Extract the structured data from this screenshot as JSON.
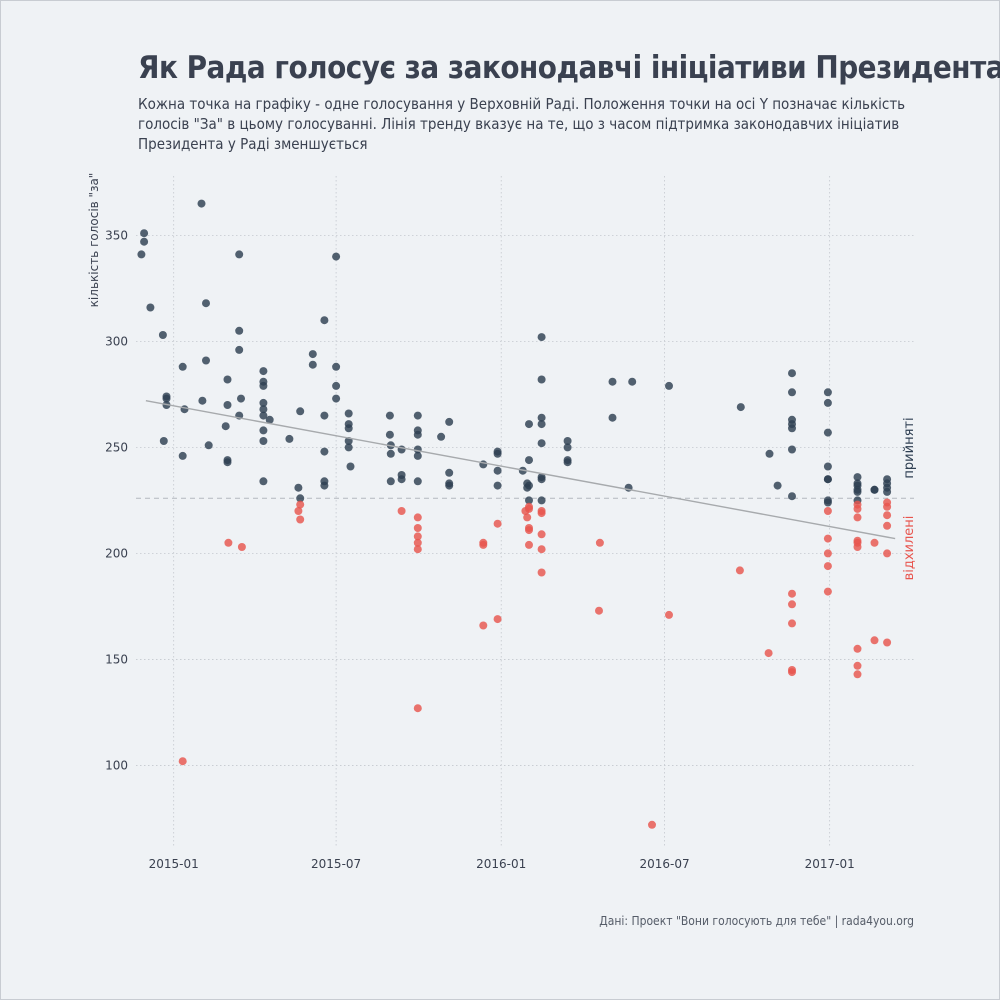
{
  "title": "Як Рада голосує за законодавчі ініціативи Президента",
  "subtitle": "Кожна точка на графіку - одне голосування у Верховній Раді. Положення точки на осі Y позначає кількість голосів \"За\" в цьому голосуванні. Лінія тренду вказує на те, що з часом підтримка законодавчих ініціатив Президента у Раді зменшується",
  "caption": "Дані: Проект \"Вони голосують для тебе\" | rada4you.org",
  "chart_data": {
    "type": "scatter",
    "ylabel": "кількість голосів \"за\"",
    "xlabel": "",
    "xlim": [
      "2014-11-20",
      "2017-04-05"
    ],
    "ylim": [
      62,
      378
    ],
    "x_ticks": [
      "2015-01-01",
      "2015-07-01",
      "2016-01-01",
      "2016-07-01",
      "2017-01-01"
    ],
    "x_tick_labels": [
      "2015-01",
      "2015-07",
      "2016-01",
      "2016-07",
      "2017-01"
    ],
    "y_ticks": [
      100,
      150,
      200,
      250,
      300,
      350
    ],
    "y_tick_labels": [
      "100",
      "150",
      "200",
      "250",
      "300",
      "350"
    ],
    "threshold": 226,
    "grid": true,
    "colors": {
      "passed": "#2e3f52",
      "rejected": "#e8554e",
      "trend": "#a7aaad",
      "threshold": "#b3b8bf"
    },
    "annotations": {
      "passed": "прийняті",
      "rejected": "відхилені"
    },
    "trend": {
      "start": [
        "2014-12-01",
        272
      ],
      "end": [
        "2017-03-15",
        207
      ]
    },
    "series": [
      {
        "key": "passed",
        "points": [
          [
            "2014-11-26",
            341
          ],
          [
            "2014-11-29",
            351
          ],
          [
            "2014-11-29",
            347
          ],
          [
            "2014-12-06",
            316
          ],
          [
            "2014-12-20",
            303
          ],
          [
            "2014-12-21",
            253
          ],
          [
            "2014-12-24",
            274
          ],
          [
            "2014-12-24",
            273
          ],
          [
            "2014-12-24",
            270
          ],
          [
            "2015-01-11",
            288
          ],
          [
            "2015-01-11",
            246
          ],
          [
            "2015-01-13",
            268
          ],
          [
            "2015-02-01",
            365
          ],
          [
            "2015-02-02",
            272
          ],
          [
            "2015-02-06",
            318
          ],
          [
            "2015-02-06",
            291
          ],
          [
            "2015-02-09",
            251
          ],
          [
            "2015-02-28",
            260
          ],
          [
            "2015-03-02",
            282
          ],
          [
            "2015-03-02",
            270
          ],
          [
            "2015-03-02",
            244
          ],
          [
            "2015-03-02",
            243
          ],
          [
            "2015-03-15",
            341
          ],
          [
            "2015-03-15",
            305
          ],
          [
            "2015-03-15",
            296
          ],
          [
            "2015-03-15",
            265
          ],
          [
            "2015-03-17",
            273
          ],
          [
            "2015-04-11",
            286
          ],
          [
            "2015-04-11",
            281
          ],
          [
            "2015-04-11",
            279
          ],
          [
            "2015-04-11",
            271
          ],
          [
            "2015-04-11",
            268
          ],
          [
            "2015-04-11",
            265
          ],
          [
            "2015-04-11",
            258
          ],
          [
            "2015-04-11",
            253
          ],
          [
            "2015-04-11",
            234
          ],
          [
            "2015-04-18",
            263
          ],
          [
            "2015-05-10",
            254
          ],
          [
            "2015-05-20",
            231
          ],
          [
            "2015-05-22",
            226
          ],
          [
            "2015-05-22",
            267
          ],
          [
            "2015-06-05",
            294
          ],
          [
            "2015-06-05",
            289
          ],
          [
            "2015-06-18",
            310
          ],
          [
            "2015-06-18",
            265
          ],
          [
            "2015-06-18",
            248
          ],
          [
            "2015-06-18",
            234
          ],
          [
            "2015-06-18",
            232
          ],
          [
            "2015-07-01",
            340
          ],
          [
            "2015-07-01",
            288
          ],
          [
            "2015-07-01",
            279
          ],
          [
            "2015-07-01",
            273
          ],
          [
            "2015-07-15",
            266
          ],
          [
            "2015-07-15",
            261
          ],
          [
            "2015-07-15",
            259
          ],
          [
            "2015-07-15",
            253
          ],
          [
            "2015-07-15",
            250
          ],
          [
            "2015-07-17",
            241
          ],
          [
            "2015-08-30",
            265
          ],
          [
            "2015-08-30",
            256
          ],
          [
            "2015-08-31",
            251
          ],
          [
            "2015-08-31",
            247
          ],
          [
            "2015-08-31",
            234
          ],
          [
            "2015-09-12",
            249
          ],
          [
            "2015-09-12",
            237
          ],
          [
            "2015-09-12",
            235
          ],
          [
            "2015-09-30",
            265
          ],
          [
            "2015-09-30",
            258
          ],
          [
            "2015-09-30",
            256
          ],
          [
            "2015-09-30",
            249
          ],
          [
            "2015-09-30",
            246
          ],
          [
            "2015-09-30",
            234
          ],
          [
            "2015-10-26",
            255
          ],
          [
            "2015-11-04",
            262
          ],
          [
            "2015-11-04",
            238
          ],
          [
            "2015-11-04",
            233
          ],
          [
            "2015-11-04",
            232
          ],
          [
            "2015-12-12",
            242
          ],
          [
            "2015-12-28",
            248
          ],
          [
            "2015-12-28",
            247
          ],
          [
            "2015-12-28",
            239
          ],
          [
            "2015-12-28",
            232
          ],
          [
            "2016-01-25",
            239
          ],
          [
            "2016-01-30",
            233
          ],
          [
            "2016-01-30",
            231
          ],
          [
            "2016-02-01",
            261
          ],
          [
            "2016-02-01",
            244
          ],
          [
            "2016-02-01",
            232
          ],
          [
            "2016-02-01",
            225
          ],
          [
            "2016-02-15",
            302
          ],
          [
            "2016-02-15",
            282
          ],
          [
            "2016-02-15",
            264
          ],
          [
            "2016-02-15",
            261
          ],
          [
            "2016-02-15",
            252
          ],
          [
            "2016-02-15",
            236
          ],
          [
            "2016-02-15",
            235
          ],
          [
            "2016-02-15",
            225
          ],
          [
            "2016-03-15",
            253
          ],
          [
            "2016-03-15",
            250
          ],
          [
            "2016-03-15",
            244
          ],
          [
            "2016-03-15",
            243
          ],
          [
            "2016-05-04",
            281
          ],
          [
            "2016-05-04",
            264
          ],
          [
            "2016-05-22",
            231
          ],
          [
            "2016-05-26",
            281
          ],
          [
            "2016-07-06",
            279
          ],
          [
            "2016-09-24",
            269
          ],
          [
            "2016-10-26",
            247
          ],
          [
            "2016-11-04",
            232
          ],
          [
            "2016-11-20",
            285
          ],
          [
            "2016-11-20",
            276
          ],
          [
            "2016-11-20",
            263
          ],
          [
            "2016-11-20",
            261
          ],
          [
            "2016-11-20",
            259
          ],
          [
            "2016-11-20",
            249
          ],
          [
            "2016-11-20",
            227
          ],
          [
            "2016-12-30",
            276
          ],
          [
            "2016-12-30",
            271
          ],
          [
            "2016-12-30",
            257
          ],
          [
            "2016-12-30",
            241
          ],
          [
            "2016-12-30",
            235
          ],
          [
            "2016-12-30",
            235
          ],
          [
            "2016-12-30",
            225
          ],
          [
            "2016-12-30",
            224
          ],
          [
            "2017-02-01",
            236
          ],
          [
            "2017-02-01",
            233
          ],
          [
            "2017-02-01",
            232
          ],
          [
            "2017-02-01",
            230
          ],
          [
            "2017-02-01",
            229
          ],
          [
            "2017-02-01",
            225
          ],
          [
            "2017-02-20",
            230
          ],
          [
            "2017-02-20",
            230
          ],
          [
            "2017-03-06",
            235
          ],
          [
            "2017-03-06",
            233
          ],
          [
            "2017-03-06",
            231
          ],
          [
            "2017-03-06",
            229
          ]
        ]
      },
      {
        "key": "rejected",
        "points": [
          [
            "2015-01-11",
            102
          ],
          [
            "2015-03-03",
            205
          ],
          [
            "2015-03-18",
            203
          ],
          [
            "2015-05-22",
            223
          ],
          [
            "2015-05-20",
            220
          ],
          [
            "2015-05-22",
            216
          ],
          [
            "2015-09-12",
            220
          ],
          [
            "2015-09-30",
            217
          ],
          [
            "2015-09-30",
            212
          ],
          [
            "2015-09-30",
            208
          ],
          [
            "2015-09-30",
            205
          ],
          [
            "2015-09-30",
            202
          ],
          [
            "2015-09-30",
            127
          ],
          [
            "2015-12-12",
            205
          ],
          [
            "2015-12-12",
            204
          ],
          [
            "2015-12-12",
            166
          ],
          [
            "2015-12-28",
            214
          ],
          [
            "2015-12-28",
            169
          ],
          [
            "2016-01-28",
            220
          ],
          [
            "2016-01-30",
            217
          ],
          [
            "2016-02-01",
            222
          ],
          [
            "2016-02-01",
            221
          ],
          [
            "2016-02-01",
            212
          ],
          [
            "2016-02-01",
            211
          ],
          [
            "2016-02-01",
            204
          ],
          [
            "2016-02-15",
            220
          ],
          [
            "2016-02-15",
            219
          ],
          [
            "2016-02-15",
            209
          ],
          [
            "2016-02-15",
            202
          ],
          [
            "2016-02-15",
            191
          ],
          [
            "2016-04-20",
            205
          ],
          [
            "2016-04-19",
            173
          ],
          [
            "2016-06-17",
            72
          ],
          [
            "2016-07-06",
            171
          ],
          [
            "2016-09-23",
            192
          ],
          [
            "2016-10-25",
            153
          ],
          [
            "2016-11-20",
            181
          ],
          [
            "2016-11-20",
            176
          ],
          [
            "2016-11-20",
            167
          ],
          [
            "2016-11-20",
            145
          ],
          [
            "2016-11-20",
            144
          ],
          [
            "2016-12-30",
            220
          ],
          [
            "2016-12-30",
            207
          ],
          [
            "2016-12-30",
            200
          ],
          [
            "2016-12-30",
            194
          ],
          [
            "2016-12-30",
            182
          ],
          [
            "2017-02-01",
            223
          ],
          [
            "2017-02-01",
            221
          ],
          [
            "2017-02-01",
            217
          ],
          [
            "2017-02-01",
            206
          ],
          [
            "2017-02-01",
            205
          ],
          [
            "2017-02-01",
            203
          ],
          [
            "2017-02-01",
            155
          ],
          [
            "2017-02-01",
            147
          ],
          [
            "2017-02-01",
            143
          ],
          [
            "2017-02-20",
            205
          ],
          [
            "2017-02-20",
            159
          ],
          [
            "2017-03-06",
            224
          ],
          [
            "2017-03-06",
            222
          ],
          [
            "2017-03-06",
            218
          ],
          [
            "2017-03-06",
            213
          ],
          [
            "2017-03-06",
            200
          ],
          [
            "2017-03-06",
            158
          ]
        ]
      }
    ]
  }
}
